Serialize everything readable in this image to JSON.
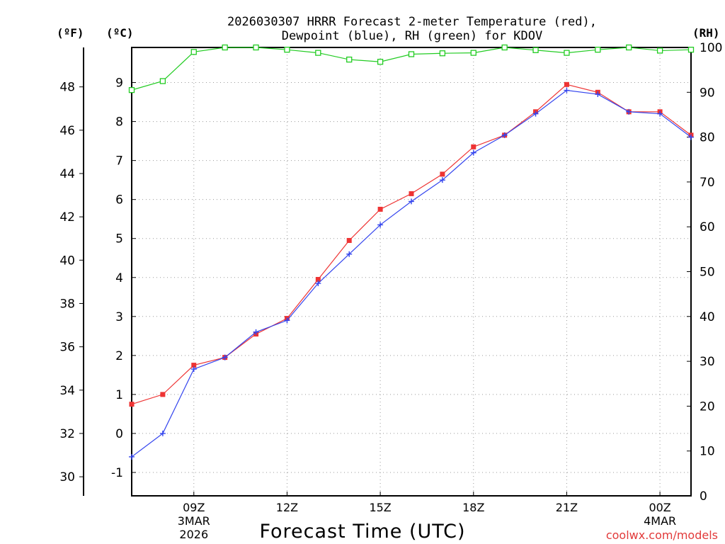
{
  "chart_data": {
    "type": "line",
    "title_line1": "2026030307 HRRR Forecast 2-meter Temperature (red),",
    "title_line2": "Dewpoint (blue), RH (green) for KDOV",
    "xlabel": "Forecast Time (UTC)",
    "credit": "coolwx.com/models",
    "units": {
      "fahrenheit": "(ºF)",
      "celsius": "(ºC)",
      "rh": "(RH)"
    },
    "hours": [
      7,
      8,
      9,
      10,
      11,
      12,
      13,
      14,
      15,
      16,
      17,
      18,
      19,
      20,
      21,
      22,
      23,
      24,
      25
    ],
    "xlim": [
      7,
      25
    ],
    "x_ticks": [
      {
        "hour": 9,
        "label": "09Z",
        "date1": "3MAR",
        "date2": "2026"
      },
      {
        "hour": 12,
        "label": "12Z"
      },
      {
        "hour": 15,
        "label": "15Z"
      },
      {
        "hour": 18,
        "label": "18Z"
      },
      {
        "hour": 21,
        "label": "21Z"
      },
      {
        "hour": 24,
        "label": "00Z",
        "date1": "4MAR"
      }
    ],
    "celsius_axis": {
      "ylim": [
        -1.6,
        9.9
      ],
      "ticks": [
        -1,
        0,
        1,
        2,
        3,
        4,
        5,
        6,
        7,
        8,
        9
      ]
    },
    "fahrenheit_axis": {
      "ylim": [
        29.12,
        49.82
      ],
      "ticks": [
        30,
        32,
        34,
        36,
        38,
        40,
        42,
        44,
        46,
        48
      ]
    },
    "rh_axis": {
      "ylim": [
        0,
        100
      ],
      "ticks": [
        0,
        10,
        20,
        30,
        40,
        50,
        60,
        70,
        80,
        90,
        100
      ]
    },
    "series": [
      {
        "name": "Temperature (°C)",
        "color": "#ee3333",
        "marker": "square-filled",
        "values": [
          0.75,
          1.0,
          1.75,
          1.95,
          2.55,
          2.95,
          3.95,
          4.95,
          5.75,
          6.15,
          6.65,
          7.35,
          7.65,
          8.25,
          8.95,
          8.75,
          8.25,
          8.25,
          7.65
        ]
      },
      {
        "name": "Dewpoint (°C)",
        "color": "#3344ee",
        "marker": "plus",
        "values": [
          -0.6,
          0.0,
          1.65,
          1.95,
          2.6,
          2.9,
          3.85,
          4.6,
          5.35,
          5.95,
          6.5,
          7.2,
          7.65,
          8.2,
          8.8,
          8.7,
          8.25,
          8.2,
          7.6
        ]
      },
      {
        "name": "RH (%)",
        "color": "#22cc22",
        "marker": "square-open",
        "values": [
          90.5,
          92.5,
          99.0,
          100,
          100,
          99.5,
          98.8,
          97.3,
          96.8,
          98.5,
          98.7,
          98.8,
          100,
          99.4,
          98.8,
          99.5,
          100,
          99.3,
          99.5
        ]
      }
    ]
  }
}
